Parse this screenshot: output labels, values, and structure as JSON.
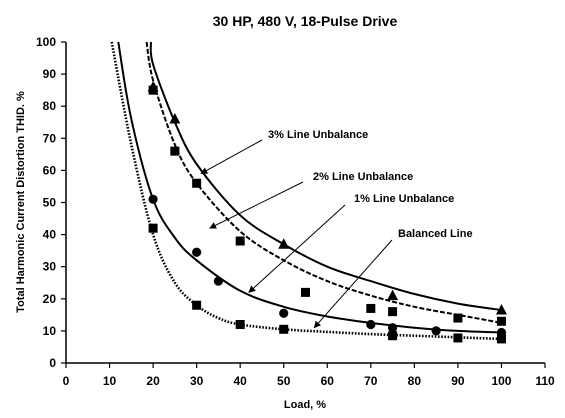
{
  "chart_data": {
    "type": "scatter",
    "title": "30 HP, 480 V, 18-Pulse Drive",
    "xlabel": "Load, %",
    "ylabel": "Total Harmonic Current Distortion THID. %",
    "xlim": [
      0,
      110
    ],
    "ylim": [
      0,
      100
    ],
    "x_ticks": [
      0,
      10,
      20,
      30,
      40,
      50,
      60,
      70,
      80,
      90,
      100,
      110
    ],
    "y_ticks": [
      0,
      10,
      20,
      30,
      40,
      50,
      60,
      70,
      80,
      90,
      100
    ],
    "grid": false,
    "legend": "none",
    "annotations": [
      {
        "text": "3% Line Unbalance",
        "target_x": 31,
        "target_y": 59
      },
      {
        "text": "2% Line Unbalance",
        "target_x": 33,
        "target_y": 42
      },
      {
        "text": "1% Line Unbalance",
        "target_x": 42,
        "target_y": 22
      },
      {
        "text": "Balanced Line",
        "target_x": 57,
        "target_y": 11
      }
    ],
    "series": [
      {
        "id": "unbalance-3",
        "marker": "triangle",
        "curve": "solid",
        "points": [
          [
            20,
            86
          ],
          [
            25,
            76
          ],
          [
            50,
            37
          ],
          [
            75,
            21
          ],
          [
            100,
            16.5
          ]
        ]
      },
      {
        "id": "unbalance-2",
        "marker": "square",
        "curve": "dashed",
        "points": [
          [
            20,
            85
          ],
          [
            25,
            66
          ],
          [
            30,
            56
          ],
          [
            40,
            38
          ],
          [
            55,
            22
          ],
          [
            70,
            17
          ],
          [
            75,
            16
          ],
          [
            90,
            14
          ],
          [
            100,
            13
          ]
        ]
      },
      {
        "id": "unbalance-1",
        "marker": "circle",
        "curve": "solid",
        "points": [
          [
            20,
            51
          ],
          [
            30,
            34.5
          ],
          [
            35,
            25.5
          ],
          [
            50,
            15.5
          ],
          [
            70,
            12
          ],
          [
            75,
            11
          ],
          [
            85,
            10
          ],
          [
            100,
            9.5
          ]
        ]
      },
      {
        "id": "balanced",
        "marker": "square",
        "curve": "dotted",
        "points": [
          [
            20,
            42
          ],
          [
            30,
            18
          ],
          [
            40,
            12
          ],
          [
            50,
            10.5
          ],
          [
            75,
            8.5
          ],
          [
            90,
            7.8
          ],
          [
            100,
            7.5
          ]
        ]
      }
    ],
    "fit_curves": [
      {
        "id": "fit-3",
        "style": "solid",
        "points": [
          [
            19.5,
            100
          ],
          [
            20,
            93
          ],
          [
            25,
            75
          ],
          [
            30,
            62
          ],
          [
            40,
            46
          ],
          [
            50,
            37
          ],
          [
            60,
            30
          ],
          [
            70,
            25.5
          ],
          [
            80,
            21.5
          ],
          [
            90,
            18.5
          ],
          [
            100,
            16.5
          ]
        ]
      },
      {
        "id": "fit-2",
        "style": "dashed",
        "points": [
          [
            18.5,
            100
          ],
          [
            20,
            88
          ],
          [
            25,
            68
          ],
          [
            30,
            56
          ],
          [
            40,
            41
          ],
          [
            50,
            32
          ],
          [
            60,
            25.5
          ],
          [
            70,
            21
          ],
          [
            80,
            17.5
          ],
          [
            90,
            15
          ],
          [
            100,
            12.5
          ]
        ]
      },
      {
        "id": "fit-1",
        "style": "solid",
        "points": [
          [
            12,
            100
          ],
          [
            15,
            76
          ],
          [
            20,
            51
          ],
          [
            25,
            39
          ],
          [
            30,
            32
          ],
          [
            40,
            22.5
          ],
          [
            50,
            17.5
          ],
          [
            60,
            14.5
          ],
          [
            70,
            12.5
          ],
          [
            80,
            11
          ],
          [
            90,
            10
          ],
          [
            100,
            9.5
          ]
        ]
      },
      {
        "id": "fit-balanced",
        "style": "dotted",
        "points": [
          [
            10.5,
            100
          ],
          [
            15,
            68
          ],
          [
            20,
            40
          ],
          [
            25,
            25
          ],
          [
            30,
            18
          ],
          [
            35,
            14
          ],
          [
            40,
            12
          ],
          [
            50,
            10.5
          ],
          [
            60,
            9.7
          ],
          [
            70,
            9
          ],
          [
            80,
            8.5
          ],
          [
            90,
            8
          ],
          [
            100,
            7.5
          ]
        ]
      }
    ]
  }
}
